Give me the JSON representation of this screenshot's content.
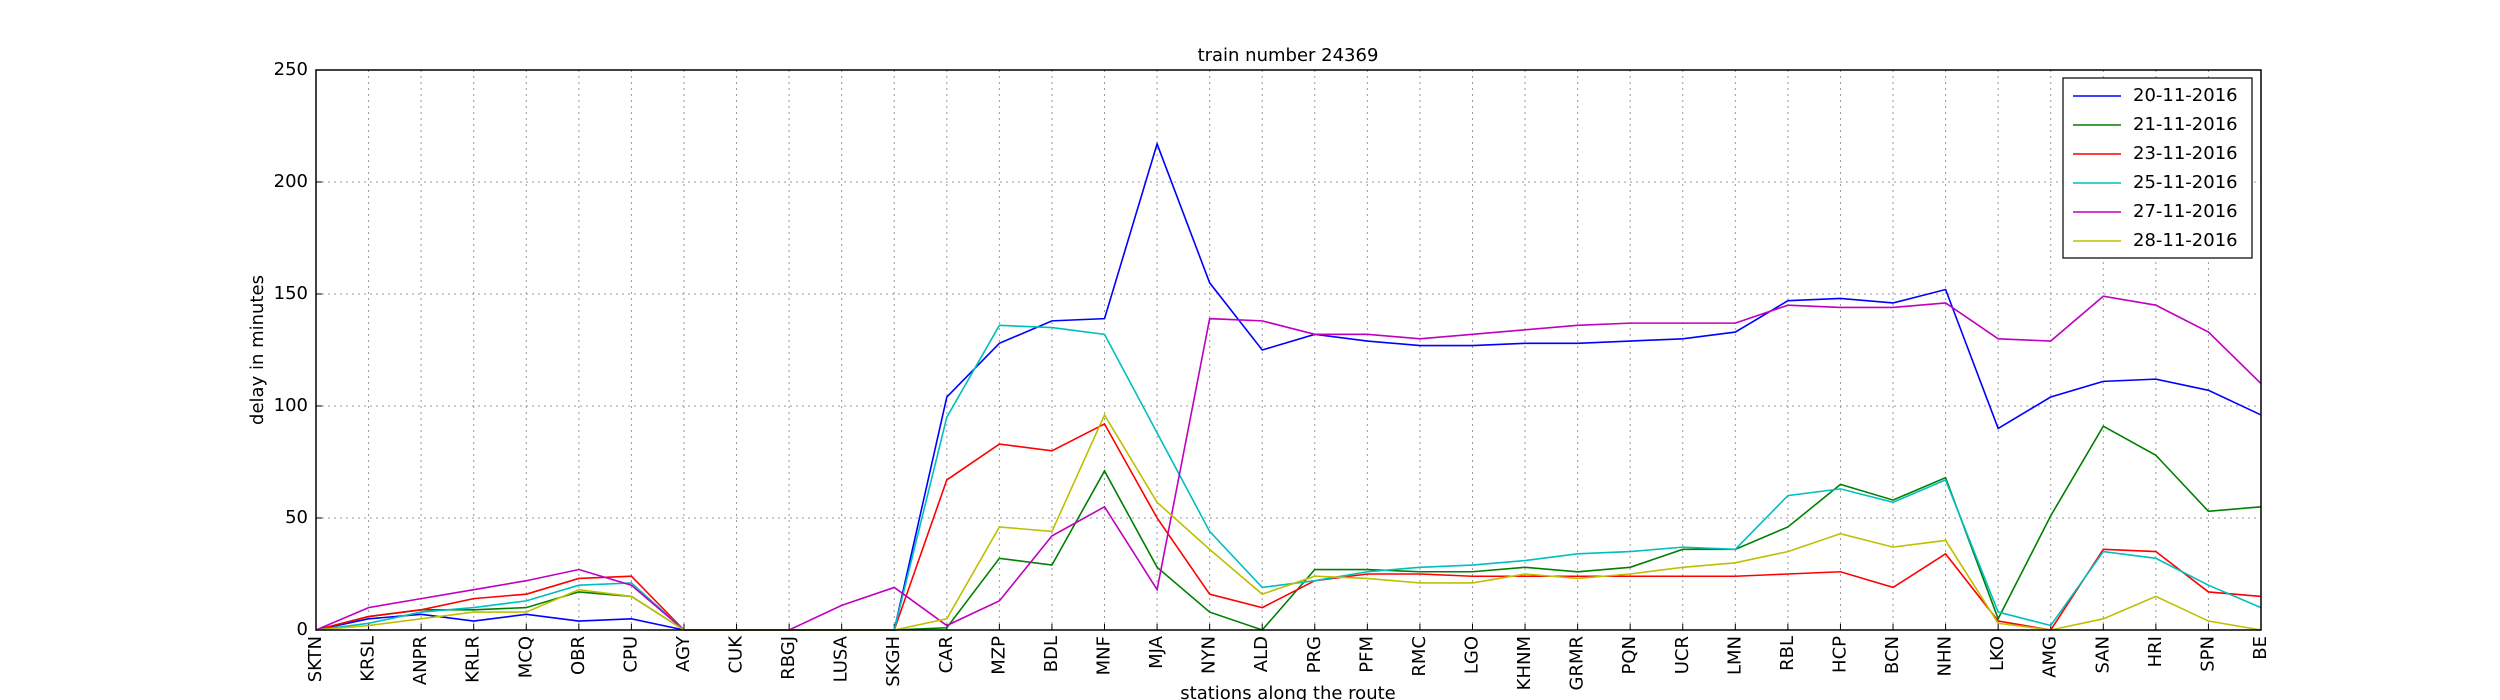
{
  "chart_data": {
    "type": "line",
    "title": "train number 24369",
    "xlabel": "stations along the route",
    "ylabel": "delay in minutes",
    "categories": [
      "SKTN",
      "KRSL",
      "ANPR",
      "KRLR",
      "MCQ",
      "OBR",
      "CPU",
      "AGY",
      "CUK",
      "RBGJ",
      "LUSA",
      "SKGH",
      "CAR",
      "MZP",
      "BDL",
      "MNF",
      "MJA",
      "NYN",
      "ALD",
      "PRG",
      "PFM",
      "RMC",
      "LGO",
      "KHNM",
      "GRMR",
      "PQN",
      "UCR",
      "LMN",
      "RBL",
      "HCP",
      "BCN",
      "NHN",
      "LKO",
      "AMG",
      "SAN",
      "HRI",
      "SPN",
      "BE"
    ],
    "series": [
      {
        "name": "20-11-2016",
        "color": "#0000ff",
        "values": [
          0,
          5,
          7,
          4,
          7,
          4,
          5,
          0,
          0,
          0,
          0,
          0,
          104,
          128,
          138,
          139,
          217,
          155,
          125,
          132,
          129,
          127,
          127,
          128,
          128,
          129,
          130,
          133,
          147,
          148,
          146,
          152,
          90,
          104,
          111,
          112,
          107,
          96
        ]
      },
      {
        "name": "21-11-2016",
        "color": "#008000",
        "values": [
          0,
          6,
          9,
          9,
          10,
          17,
          15,
          0,
          0,
          0,
          0,
          0,
          1,
          32,
          29,
          71,
          28,
          8,
          0,
          27,
          27,
          26,
          26,
          28,
          26,
          28,
          36,
          36,
          46,
          65,
          58,
          68,
          5,
          51,
          91,
          78,
          53,
          55
        ]
      },
      {
        "name": "23-11-2016",
        "color": "#ff0000",
        "values": [
          0,
          6,
          9,
          14,
          16,
          23,
          24,
          0,
          0,
          0,
          0,
          0,
          67,
          83,
          80,
          92,
          50,
          16,
          10,
          22,
          25,
          25,
          24,
          24,
          24,
          24,
          24,
          24,
          25,
          26,
          19,
          34,
          4,
          0,
          36,
          35,
          17,
          15
        ]
      },
      {
        "name": "25-11-2016",
        "color": "#00bfbf",
        "values": [
          0,
          3,
          8,
          10,
          13,
          20,
          21,
          0,
          0,
          0,
          0,
          0,
          95,
          136,
          135,
          132,
          88,
          44,
          19,
          22,
          26,
          28,
          29,
          31,
          34,
          35,
          37,
          36,
          60,
          63,
          57,
          67,
          8,
          2,
          35,
          32,
          20,
          10
        ]
      },
      {
        "name": "27-11-2016",
        "color": "#bf00bf",
        "values": [
          0,
          10,
          14,
          18,
          22,
          27,
          20,
          0,
          0,
          0,
          11,
          19,
          2,
          13,
          42,
          55,
          18,
          139,
          138,
          132,
          132,
          130,
          132,
          134,
          136,
          137,
          137,
          137,
          145,
          144,
          144,
          146,
          130,
          129,
          149,
          145,
          133,
          110
        ]
      },
      {
        "name": "28-11-2016",
        "color": "#bfbf00",
        "values": [
          0,
          2,
          5,
          8,
          8,
          18,
          15,
          0,
          0,
          0,
          0,
          0,
          5,
          46,
          44,
          96,
          57,
          36,
          16,
          24,
          23,
          21,
          21,
          25,
          23,
          25,
          28,
          30,
          35,
          43,
          37,
          40,
          3,
          0,
          5,
          15,
          4,
          0
        ]
      }
    ],
    "ylim": [
      0,
      250
    ],
    "yticks": [
      0,
      50,
      100,
      150,
      200,
      250
    ],
    "grid": true,
    "legend": "upper right"
  }
}
